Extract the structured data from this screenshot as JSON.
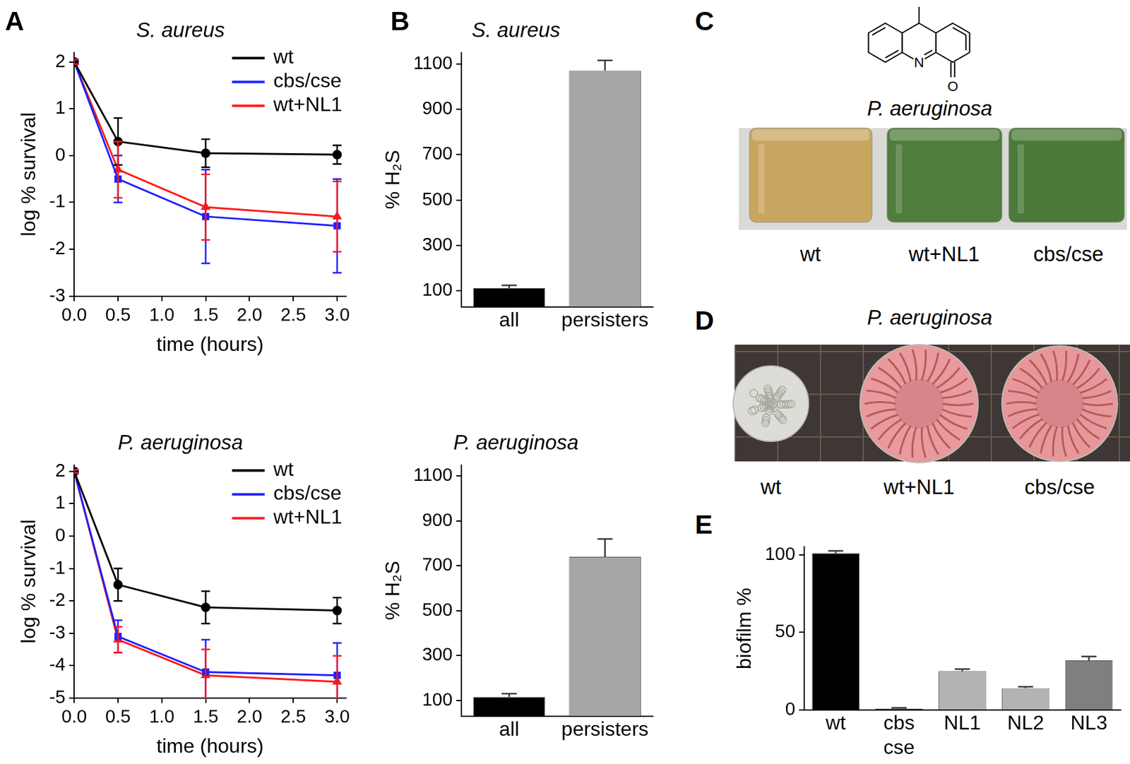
{
  "chart_data": [
    {
      "panel": "A",
      "type": "line",
      "title": "S. aureus",
      "x_label": "time (hours)",
      "y_label": "log % survival",
      "x": [
        0,
        0.5,
        1.5,
        3.0
      ],
      "xlim": [
        0,
        3.1
      ],
      "xticks": [
        {
          "value": 0,
          "label": "0.0"
        },
        {
          "value": 0.5,
          "label": "0.5"
        },
        {
          "value": 1,
          "label": "1.0"
        },
        {
          "value": 1.5,
          "label": "1.5"
        },
        {
          "value": 2,
          "label": "2.0"
        },
        {
          "value": 2.5,
          "label": "2.5"
        },
        {
          "value": 3,
          "label": "3.0"
        }
      ],
      "ylim": [
        -3,
        2.2
      ],
      "yticks": [
        -3,
        -2,
        -1,
        0,
        1,
        2
      ],
      "grid": false,
      "legend": "upper right",
      "series": [
        {
          "name": "wt",
          "color": "#000000",
          "marker": "circle",
          "values": [
            2.0,
            0.3,
            0.05,
            0.02
          ],
          "errors": [
            0.05,
            0.5,
            0.3,
            0.2
          ]
        },
        {
          "name": "cbs/cse",
          "color": "#1f1fff",
          "marker": "square",
          "values": [
            2.0,
            -0.5,
            -1.3,
            -1.5
          ],
          "errors": [
            0.05,
            0.5,
            1.0,
            1.0
          ]
        },
        {
          "name": "wt+NL1",
          "color": "#ff1a1a",
          "marker": "triangle",
          "values": [
            2.0,
            -0.3,
            -1.1,
            -1.3
          ],
          "errors": [
            0.05,
            0.6,
            0.7,
            0.75
          ]
        }
      ]
    },
    {
      "type": "line",
      "title": "P. aeruginosa",
      "x_label": "time (hours)",
      "y_label": "log % survival",
      "x": [
        0,
        0.5,
        1.5,
        3.0
      ],
      "xlim": [
        0,
        3.1
      ],
      "xticks": [
        {
          "value": 0,
          "label": "0.0"
        },
        {
          "value": 0.5,
          "label": "0.5"
        },
        {
          "value": 1,
          "label": "1.0"
        },
        {
          "value": 1.5,
          "label": "1.5"
        },
        {
          "value": 2,
          "label": "2.0"
        },
        {
          "value": 2.5,
          "label": "2.5"
        },
        {
          "value": 3,
          "label": "3.0"
        }
      ],
      "ylim": [
        -5,
        2.2
      ],
      "yticks": [
        -5,
        -4,
        -3,
        -2,
        -1,
        0,
        1,
        2
      ],
      "grid": false,
      "legend": "upper right",
      "series": [
        {
          "name": "wt",
          "color": "#000000",
          "marker": "circle",
          "values": [
            2.0,
            -1.5,
            -2.2,
            -2.3
          ],
          "errors": [
            0.05,
            0.5,
            0.5,
            0.4
          ]
        },
        {
          "name": "cbs/cse",
          "color": "#1f1fff",
          "marker": "square",
          "values": [
            2.0,
            -3.1,
            -4.2,
            -4.3
          ],
          "errors": [
            0.05,
            0.5,
            1.0,
            1.0
          ]
        },
        {
          "name": "wt+NL1",
          "color": "#ff1a1a",
          "marker": "triangle",
          "values": [
            2.0,
            -3.2,
            -4.3,
            -4.5
          ],
          "errors": [
            0.05,
            0.4,
            0.8,
            0.8
          ]
        }
      ]
    },
    {
      "panel": "B",
      "type": "bar",
      "title": "S. aureus",
      "y_label": "% H₂S",
      "categories": [
        "all",
        "persisters"
      ],
      "values": [
        112,
        1070
      ],
      "errors": [
        12,
        45
      ],
      "colors": [
        "#000000",
        "#a6a6a6"
      ],
      "ylim": [
        30,
        1150
      ],
      "yticks": [
        100,
        300,
        500,
        700,
        900,
        1100
      ],
      "grid": false
    },
    {
      "type": "bar",
      "title": "P. aeruginosa",
      "y_label": "% H₂S",
      "categories": [
        "all",
        "persisters"
      ],
      "values": [
        115,
        740
      ],
      "errors": [
        15,
        80
      ],
      "colors": [
        "#000000",
        "#a6a6a6"
      ],
      "ylim": [
        30,
        1150
      ],
      "yticks": [
        100,
        300,
        500,
        700,
        900,
        1100
      ],
      "grid": false
    },
    {
      "panel": "E",
      "type": "bar",
      "y_label": "biofilm %",
      "categories": [
        "wt",
        "cbs cse",
        "NL1",
        "NL2",
        "NL3"
      ],
      "values": [
        101,
        1,
        25,
        14,
        32
      ],
      "errors": [
        1.5,
        0.5,
        1.5,
        1.0,
        2.5
      ],
      "colors": [
        "#000000",
        "#000000",
        "#b3b3b3",
        "#b3b3b3",
        "#7f7f7f"
      ],
      "ylim": [
        0,
        105
      ],
      "yticks": [
        0,
        50,
        100
      ],
      "grid": false
    }
  ],
  "figure": [
    {
      "panel": "C",
      "title": "P. aeruginosa",
      "structure_labels": [
        "N",
        "O"
      ],
      "labels": [
        "wt",
        "wt+NL1",
        "cbs/cse"
      ],
      "colors": [
        "#c9a65f",
        "#4f7d3c",
        "#4b7a39"
      ]
    },
    {
      "panel": "D",
      "title": "P. aeruginosa",
      "labels": [
        "wt",
        "wt+NL1",
        "cbs/cse"
      ],
      "colors": [
        "#dedcd6",
        "#e89a9c",
        "#e6979a"
      ]
    }
  ]
}
